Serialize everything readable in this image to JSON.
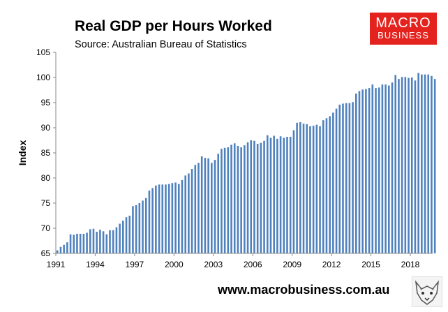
{
  "header": {
    "title": "Real GDP per Hours Worked",
    "subtitle": "Source: Australian Bureau of Statistics"
  },
  "logo": {
    "line1": "MACRO",
    "line2": "BUSINESS"
  },
  "footer": {
    "website": "www.macrobusiness.com.au"
  },
  "colors": {
    "bar": "#4f81bd",
    "logo_bg": "#e4231f",
    "axis": "#888888"
  },
  "icons": {
    "mascot": "fox-sketch-icon"
  },
  "chart_data": {
    "type": "bar",
    "ylabel": "Index",
    "ylim": [
      65,
      105
    ],
    "yticks": [
      65,
      70,
      75,
      80,
      85,
      90,
      95,
      100,
      105
    ],
    "xticks": [
      "1991",
      "1994",
      "1997",
      "2000",
      "2003",
      "2006",
      "2009",
      "2012",
      "2015",
      "2018"
    ],
    "start": "1991 Q1",
    "frequency": "quarterly",
    "values": [
      65.6,
      66.3,
      66.7,
      67.2,
      68.8,
      68.7,
      68.9,
      68.9,
      68.9,
      69.1,
      69.8,
      69.9,
      69.3,
      69.7,
      69.4,
      68.8,
      69.6,
      69.6,
      70.2,
      70.9,
      71.5,
      72.2,
      72.5,
      74.4,
      74.6,
      75.0,
      75.5,
      76.0,
      77.5,
      78.0,
      78.5,
      78.7,
      78.7,
      78.7,
      78.8,
      79.0,
      79.1,
      78.8,
      79.6,
      80.5,
      80.9,
      81.8,
      82.6,
      83.0,
      84.3,
      84.0,
      83.9,
      83.0,
      83.6,
      84.8,
      85.8,
      86.0,
      86.1,
      86.6,
      86.9,
      86.4,
      86.1,
      86.5,
      87.1,
      87.5,
      87.4,
      86.8,
      87.0,
      87.4,
      88.5,
      88.0,
      88.4,
      87.8,
      88.3,
      88.0,
      88.2,
      88.2,
      89.5,
      91.0,
      91.1,
      90.8,
      90.7,
      90.3,
      90.4,
      90.6,
      90.3,
      91.5,
      91.9,
      92.3,
      93.0,
      93.8,
      94.6,
      94.8,
      94.9,
      94.9,
      95.1,
      96.8,
      97.3,
      97.6,
      97.7,
      97.9,
      98.6,
      97.9,
      98.0,
      98.6,
      98.6,
      98.4,
      99.0,
      100.5,
      99.7,
      100.1,
      100.1,
      99.9,
      100.0,
      99.4,
      100.9,
      100.6,
      100.6,
      100.6,
      100.3,
      99.7
    ]
  }
}
